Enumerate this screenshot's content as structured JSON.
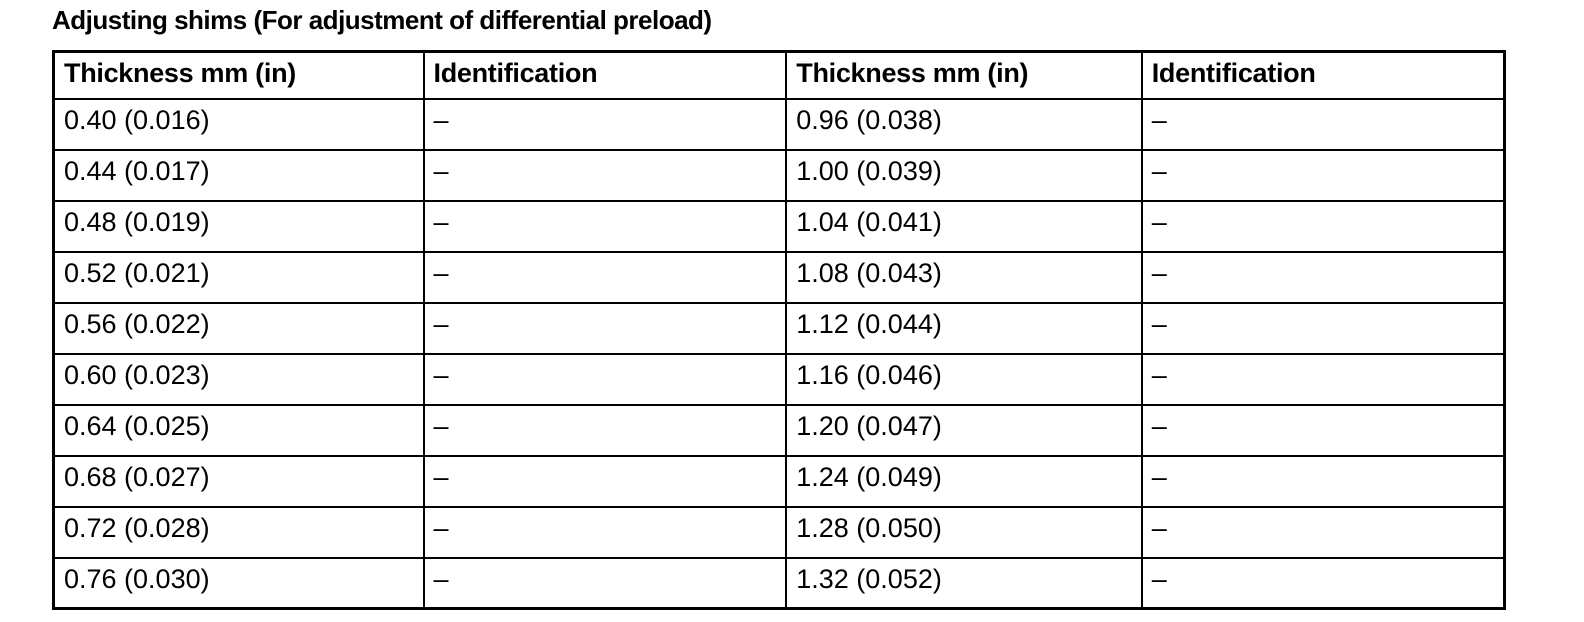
{
  "title": "Adjusting shims (For adjustment of differential preload)",
  "table": {
    "headers": [
      "Thickness mm (in)",
      "Identification",
      "Thickness mm (in)",
      "Identification"
    ],
    "rows": [
      [
        "0.40 (0.016)",
        "–",
        "0.96 (0.038)",
        "–"
      ],
      [
        "0.44 (0.017)",
        "–",
        "1.00 (0.039)",
        "–"
      ],
      [
        "0.48 (0.019)",
        "–",
        "1.04 (0.041)",
        "–"
      ],
      [
        "0.52 (0.021)",
        "–",
        "1.08 (0.043)",
        "–"
      ],
      [
        "0.56 (0.022)",
        "–",
        "1.12 (0.044)",
        "–"
      ],
      [
        "0.60 (0.023)",
        "–",
        "1.16 (0.046)",
        "–"
      ],
      [
        "0.64 (0.025)",
        "–",
        "1.20 (0.047)",
        "–"
      ],
      [
        "0.68 (0.027)",
        "–",
        "1.24 (0.049)",
        "–"
      ],
      [
        "0.72 (0.028)",
        "–",
        "1.28 (0.050)",
        "–"
      ],
      [
        "0.76 (0.030)",
        "–",
        "1.32 (0.052)",
        "–"
      ]
    ]
  }
}
